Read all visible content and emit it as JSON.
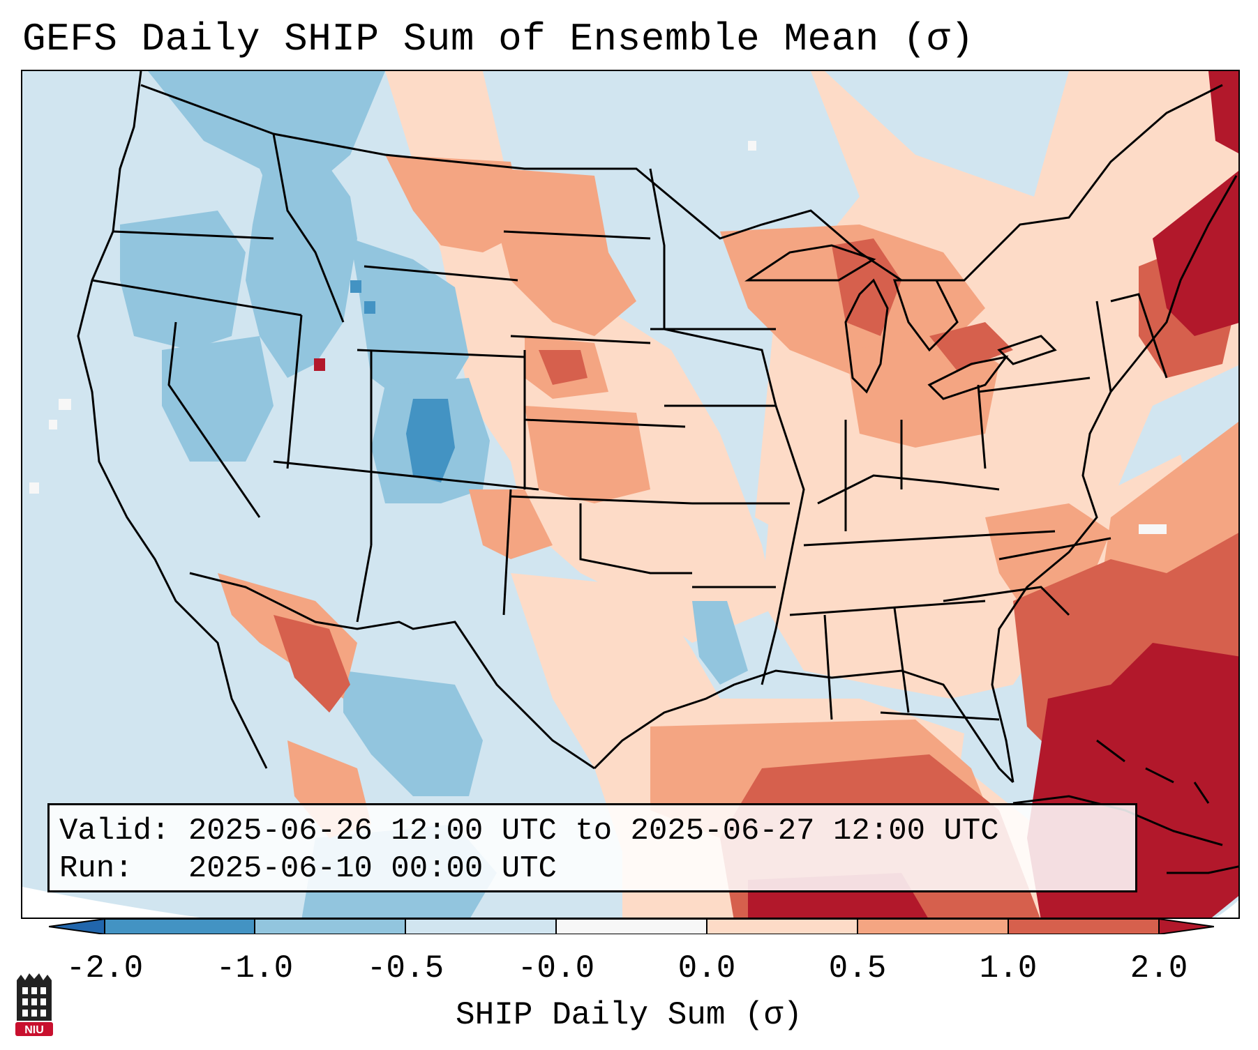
{
  "title": "GEFS Daily SHIP Sum of Ensemble Mean (σ)",
  "info": {
    "valid_label": "Valid:",
    "valid_value": "2025-06-26 12:00 UTC to 2025-06-27 12:00 UTC",
    "run_label": "Run:",
    "run_value": "2025-06-10 00:00 UTC"
  },
  "colorbar": {
    "label": "SHIP Daily Sum (σ)",
    "ticks": [
      "-2.0",
      "-1.0",
      "-0.5",
      "-0.0",
      "0.0",
      "0.5",
      "1.0",
      "2.0"
    ],
    "colors": {
      "below": "#2166ac",
      "b1": "#4393c3",
      "b2": "#92c5de",
      "b3": "#d1e5f0",
      "b4": "#f7f7f7",
      "b5": "#fddbc7",
      "b6": "#f4a582",
      "b7": "#d6604d",
      "above": "#b2182b"
    }
  },
  "logo": {
    "text": "NIU",
    "color": "#c8102e"
  }
}
